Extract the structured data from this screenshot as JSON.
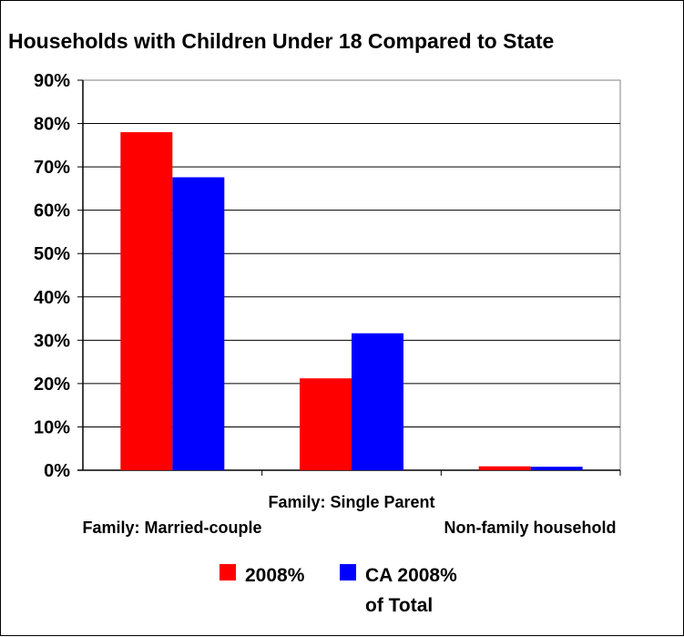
{
  "chart_data": {
    "type": "bar",
    "title": "Households with Children Under 18 Compared to State",
    "categories": [
      "Family: Married-couple",
      "Family: Single Parent",
      "Non-family household"
    ],
    "series": [
      {
        "name": "2008%",
        "values": [
          78.0,
          21.2,
          0.9
        ],
        "color": "#ff0000"
      },
      {
        "name": "CA 2008% of Total",
        "values": [
          67.6,
          31.6,
          0.8
        ],
        "color": "#0000ff"
      }
    ],
    "ylim": [
      0,
      90
    ],
    "yticks": [
      "0%",
      "10%",
      "20%",
      "30%",
      "40%",
      "50%",
      "60%",
      "70%",
      "80%",
      "90%"
    ],
    "grid": true,
    "legend": {
      "position": "bottom",
      "labels": [
        "2008%",
        "CA 2008%",
        "of Total"
      ]
    }
  }
}
